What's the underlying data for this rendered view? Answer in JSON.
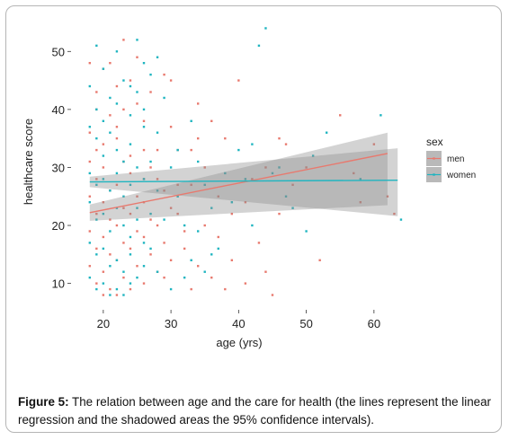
{
  "caption": {
    "label": "Figure 5:",
    "text": " The relation between age and the care for health (the lines represent the linear regression and the shadowed areas the 95% confidence intervals)."
  },
  "chart_data": {
    "type": "scatter",
    "title": "",
    "xlabel": "age  (yrs)",
    "ylabel": "healthcare score",
    "xlim": [
      15.5,
      66
    ],
    "ylim": [
      7,
      55
    ],
    "xticks": [
      20,
      30,
      40,
      50,
      60
    ],
    "yticks": [
      10,
      20,
      30,
      40,
      50
    ],
    "grid": false,
    "legend": {
      "title": "sex",
      "position": "right"
    },
    "series": [
      {
        "name": "men",
        "color": "#e8796e",
        "regression": {
          "x": [
            18,
            62
          ],
          "y": [
            22.2,
            32.4
          ],
          "ci_low": [
            20.8,
            23.5
          ],
          "ci_high": [
            23.6,
            36.0
          ]
        },
        "points": [
          [
            18,
            48
          ],
          [
            19,
            43
          ],
          [
            20,
            47
          ],
          [
            18,
            36
          ],
          [
            21,
            39
          ],
          [
            22,
            44
          ],
          [
            19,
            33
          ],
          [
            23,
            40
          ],
          [
            24,
            45
          ],
          [
            20,
            30
          ],
          [
            25,
            41
          ],
          [
            22,
            35
          ],
          [
            26,
            38
          ],
          [
            19,
            28
          ],
          [
            21,
            26
          ],
          [
            23,
            31
          ],
          [
            18,
            25
          ],
          [
            20,
            24
          ],
          [
            22,
            27
          ],
          [
            24,
            29
          ],
          [
            26,
            33
          ],
          [
            19,
            22
          ],
          [
            21,
            21
          ],
          [
            23,
            23
          ],
          [
            25,
            25
          ],
          [
            27,
            30
          ],
          [
            18,
            19
          ],
          [
            20,
            18
          ],
          [
            22,
            20
          ],
          [
            24,
            22
          ],
          [
            26,
            24
          ],
          [
            28,
            28
          ],
          [
            19,
            16
          ],
          [
            21,
            15
          ],
          [
            23,
            17
          ],
          [
            25,
            19
          ],
          [
            27,
            21
          ],
          [
            29,
            26
          ],
          [
            18,
            13
          ],
          [
            20,
            12
          ],
          [
            22,
            14
          ],
          [
            24,
            16
          ],
          [
            26,
            18
          ],
          [
            28,
            20
          ],
          [
            30,
            23
          ],
          [
            19,
            10
          ],
          [
            21,
            9
          ],
          [
            23,
            11
          ],
          [
            25,
            13
          ],
          [
            27,
            15
          ],
          [
            29,
            17
          ],
          [
            31,
            22
          ],
          [
            20,
            8
          ],
          [
            22,
            8
          ],
          [
            24,
            9
          ],
          [
            26,
            10
          ],
          [
            28,
            12
          ],
          [
            30,
            14
          ],
          [
            32,
            19
          ],
          [
            33,
            27
          ],
          [
            34,
            41
          ],
          [
            36,
            38
          ],
          [
            38,
            35
          ],
          [
            31,
            33
          ],
          [
            35,
            30
          ],
          [
            37,
            25
          ],
          [
            39,
            22
          ],
          [
            32,
            16
          ],
          [
            34,
            13
          ],
          [
            36,
            11
          ],
          [
            38,
            9
          ],
          [
            40,
            45
          ],
          [
            42,
            28
          ],
          [
            41,
            24
          ],
          [
            43,
            17
          ],
          [
            44,
            12
          ],
          [
            46,
            22
          ],
          [
            47,
            34
          ],
          [
            48,
            27
          ],
          [
            50,
            30
          ],
          [
            52,
            14
          ],
          [
            55,
            39
          ],
          [
            57,
            29
          ],
          [
            60,
            34
          ],
          [
            62,
            25
          ],
          [
            63,
            22
          ],
          [
            29,
            46
          ],
          [
            27,
            43
          ],
          [
            25,
            49
          ],
          [
            23,
            52
          ],
          [
            21,
            48
          ],
          [
            19,
            40
          ],
          [
            18,
            31
          ],
          [
            20,
            34
          ],
          [
            22,
            37
          ],
          [
            24,
            32
          ],
          [
            26,
            28
          ],
          [
            28,
            33
          ],
          [
            30,
            37
          ],
          [
            33,
            33
          ],
          [
            35,
            20
          ],
          [
            37,
            18
          ],
          [
            39,
            14
          ],
          [
            41,
            10
          ],
          [
            33,
            9
          ],
          [
            30,
            45
          ],
          [
            34,
            35
          ],
          [
            29,
            11
          ],
          [
            31,
            27
          ],
          [
            44,
            30
          ],
          [
            46,
            35
          ],
          [
            58,
            24
          ],
          [
            45,
            8
          ]
        ]
      },
      {
        "name": "women",
        "color": "#1fb5c0",
        "regression": {
          "x": [
            18,
            63.5
          ],
          "y": [
            27.5,
            27.8
          ],
          "ci_low": [
            26.6,
            21.6
          ],
          "ci_high": [
            28.4,
            33.3
          ]
        },
        "points": [
          [
            18,
            44
          ],
          [
            19,
            40
          ],
          [
            20,
            47
          ],
          [
            21,
            42
          ],
          [
            22,
            50
          ],
          [
            23,
            45
          ],
          [
            24,
            39
          ],
          [
            25,
            43
          ],
          [
            18,
            37
          ],
          [
            19,
            35
          ],
          [
            20,
            32
          ],
          [
            21,
            36
          ],
          [
            22,
            33
          ],
          [
            23,
            31
          ],
          [
            24,
            34
          ],
          [
            25,
            30
          ],
          [
            26,
            37
          ],
          [
            18,
            29
          ],
          [
            19,
            27
          ],
          [
            20,
            28
          ],
          [
            21,
            26
          ],
          [
            22,
            29
          ],
          [
            23,
            25
          ],
          [
            24,
            27
          ],
          [
            25,
            23
          ],
          [
            26,
            28
          ],
          [
            27,
            31
          ],
          [
            18,
            24
          ],
          [
            19,
            21
          ],
          [
            20,
            22
          ],
          [
            21,
            19
          ],
          [
            22,
            23
          ],
          [
            23,
            20
          ],
          [
            24,
            18
          ],
          [
            25,
            21
          ],
          [
            26,
            17
          ],
          [
            27,
            22
          ],
          [
            18,
            17
          ],
          [
            19,
            15
          ],
          [
            20,
            16
          ],
          [
            21,
            13
          ],
          [
            22,
            14
          ],
          [
            23,
            12
          ],
          [
            24,
            15
          ],
          [
            25,
            11
          ],
          [
            26,
            13
          ],
          [
            27,
            16
          ],
          [
            18,
            11
          ],
          [
            19,
            9
          ],
          [
            20,
            10
          ],
          [
            21,
            8
          ],
          [
            22,
            9
          ],
          [
            23,
            8
          ],
          [
            24,
            10
          ],
          [
            28,
            36
          ],
          [
            29,
            42
          ],
          [
            30,
            30
          ],
          [
            31,
            25
          ],
          [
            32,
            20
          ],
          [
            33,
            14
          ],
          [
            34,
            31
          ],
          [
            35,
            27
          ],
          [
            36,
            23
          ],
          [
            37,
            16
          ],
          [
            38,
            29
          ],
          [
            39,
            24
          ],
          [
            40,
            33
          ],
          [
            41,
            28
          ],
          [
            42,
            20
          ],
          [
            43,
            51
          ],
          [
            44,
            54
          ],
          [
            45,
            29
          ],
          [
            46,
            30
          ],
          [
            48,
            23
          ],
          [
            50,
            19
          ],
          [
            51,
            32
          ],
          [
            53,
            36
          ],
          [
            58,
            28
          ],
          [
            61,
            39
          ],
          [
            64,
            21
          ],
          [
            25,
            52
          ],
          [
            27,
            46
          ],
          [
            19,
            51
          ],
          [
            28,
            12
          ],
          [
            30,
            9
          ],
          [
            32,
            11
          ],
          [
            34,
            19
          ],
          [
            36,
            15
          ],
          [
            26,
            40
          ],
          [
            28,
            26
          ],
          [
            29,
            21
          ],
          [
            31,
            33
          ],
          [
            33,
            38
          ],
          [
            20,
            38
          ],
          [
            22,
            41
          ],
          [
            24,
            44
          ],
          [
            26,
            48
          ],
          [
            28,
            49
          ],
          [
            42,
            34
          ],
          [
            47,
            25
          ],
          [
            35,
            12
          ]
        ]
      }
    ]
  }
}
